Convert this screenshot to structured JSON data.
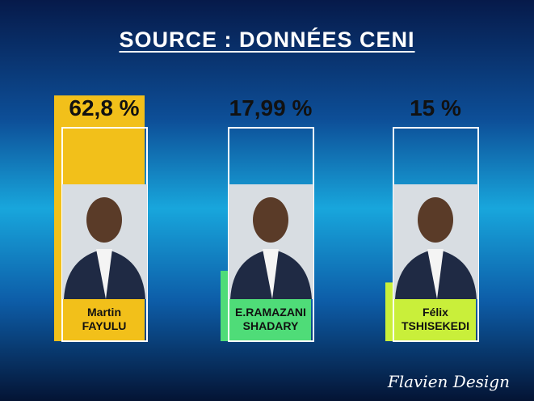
{
  "chart_data": {
    "type": "bar",
    "title": "SOURCE : DONNÉES CENI",
    "categories": [
      "Martin FAYULU",
      "E.RAMAZANI SHADARY",
      "Félix TSHISEKEDI"
    ],
    "values": [
      62.8,
      17.99,
      15
    ],
    "value_labels": [
      "62,8 %",
      "17,99 %",
      "15 %"
    ],
    "colors": [
      "#f2c01a",
      "#4fdc78",
      "#c9ef3a"
    ],
    "watermark": "Flavien Design"
  }
}
